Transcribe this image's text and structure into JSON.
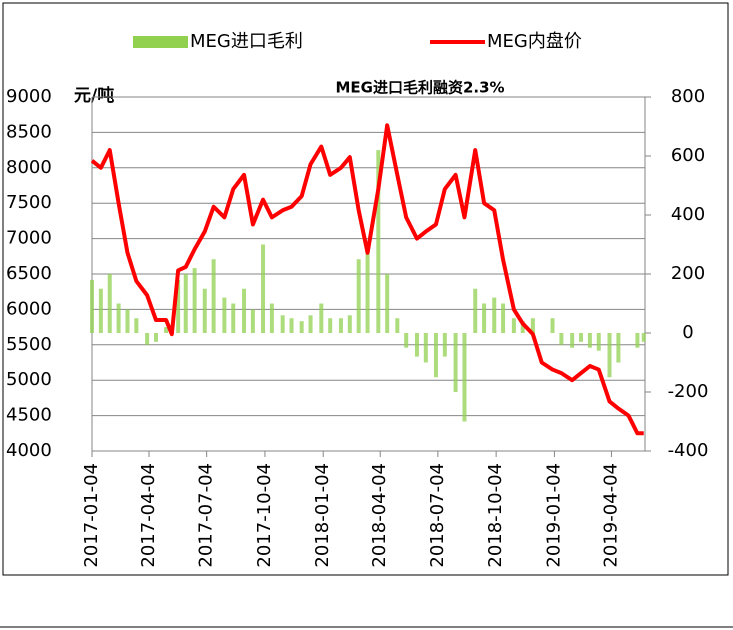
{
  "chart_data": {
    "type": "bar-line",
    "annotation": "MEG进口毛利融资2.3%",
    "y_label": "元/吨",
    "x": [
      "2017-01-04",
      "2017-01-18",
      "2017-02-01",
      "2017-02-15",
      "2017-03-01",
      "2017-03-15",
      "2017-04-01",
      "2017-04-15",
      "2017-05-01",
      "2017-05-10",
      "2017-05-20",
      "2017-06-01",
      "2017-06-15",
      "2017-07-01",
      "2017-07-15",
      "2017-08-01",
      "2017-08-15",
      "2017-09-01",
      "2017-09-15",
      "2017-10-01",
      "2017-10-15",
      "2017-11-01",
      "2017-11-15",
      "2017-12-01",
      "2017-12-15",
      "2018-01-01",
      "2018-01-15",
      "2018-02-01",
      "2018-02-15",
      "2018-03-01",
      "2018-03-15",
      "2018-04-01",
      "2018-04-15",
      "2018-05-01",
      "2018-05-15",
      "2018-06-01",
      "2018-06-15",
      "2018-07-01",
      "2018-07-15",
      "2018-08-01",
      "2018-08-15",
      "2018-09-01",
      "2018-09-15",
      "2018-10-01",
      "2018-10-15",
      "2018-11-01",
      "2018-11-15",
      "2018-12-01",
      "2018-12-15",
      "2019-01-01",
      "2019-01-15",
      "2019-02-01",
      "2019-02-15",
      "2019-03-01",
      "2019-03-15",
      "2019-04-01",
      "2019-04-15",
      "2019-05-01",
      "2019-05-15",
      "2019-05-25"
    ],
    "series": [
      {
        "name": "MEG进口毛利",
        "type": "bar",
        "axis": "y2",
        "color": "#92d050",
        "values": [
          180,
          150,
          200,
          100,
          80,
          50,
          -40,
          -30,
          20,
          0,
          180,
          200,
          220,
          150,
          250,
          120,
          100,
          150,
          80,
          300,
          100,
          60,
          50,
          40,
          60,
          100,
          50,
          50,
          60,
          250,
          300,
          620,
          200,
          50,
          -50,
          -80,
          -100,
          -150,
          -80,
          -200,
          -300,
          150,
          100,
          120,
          100,
          50,
          40,
          50,
          0,
          50,
          -40,
          -50,
          -30,
          -50,
          -60,
          -150,
          -100,
          0,
          -50,
          -30
        ]
      },
      {
        "name": "MEG内盘价",
        "type": "line",
        "color": "#ff0000",
        "values": [
          8100,
          8000,
          8250,
          7500,
          6800,
          6400,
          6200,
          5850,
          5850,
          5650,
          6550,
          6600,
          6850,
          7100,
          7450,
          7300,
          7700,
          7900,
          7200,
          7550,
          7300,
          7400,
          7450,
          7600,
          8050,
          8300,
          7900,
          8000,
          8150,
          7400,
          6800,
          7700,
          8600,
          7900,
          7300,
          7000,
          7100,
          7200,
          7700,
          7900,
          7300,
          8250,
          7500,
          7400,
          6700,
          6000,
          5800,
          5650,
          5250,
          5150,
          5100,
          5000,
          5100,
          5200,
          5150,
          4700,
          4600,
          4500,
          4250,
          4250
        ]
      }
    ],
    "xlim": [
      "2017-01-04",
      "2019-05-27"
    ],
    "xticks": [
      "2017-01-04",
      "2017-04-04",
      "2017-07-04",
      "2017-10-04",
      "2018-01-04",
      "2018-04-04",
      "2018-07-04",
      "2018-10-04",
      "2019-01-04",
      "2019-04-04"
    ],
    "ylim": [
      4000,
      9000
    ],
    "yticks": [
      4000,
      4500,
      5000,
      5500,
      6000,
      6500,
      7000,
      7500,
      8000,
      8500,
      9000
    ],
    "y2lim": [
      -400,
      800
    ],
    "y2ticks": [
      -400,
      -200,
      0,
      200,
      400,
      600,
      800
    ],
    "grid": true,
    "legend": "top"
  }
}
